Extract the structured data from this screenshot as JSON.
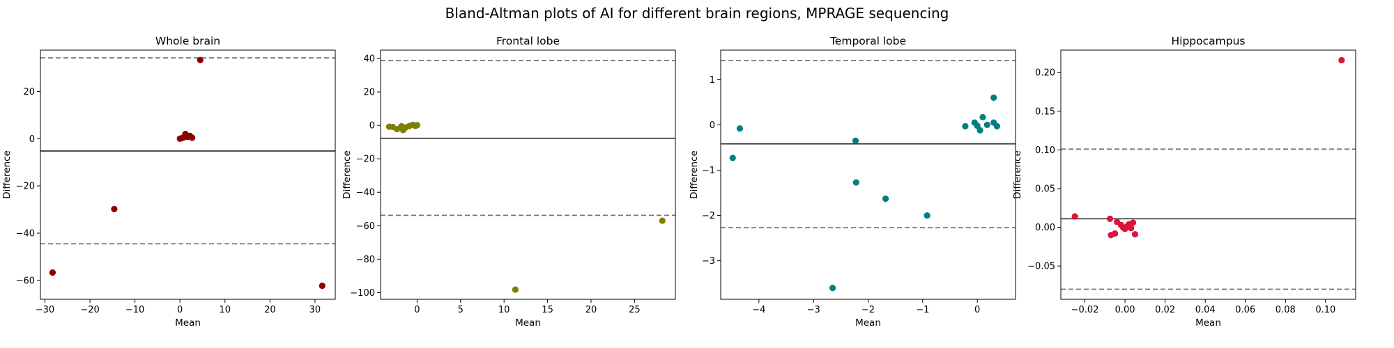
{
  "figure": {
    "title": "Bland-Altman plots of AI for different brain regions, MPRAGE sequencing"
  },
  "chart_data": [
    {
      "type": "scatter",
      "title": "Whole brain",
      "xlabel": "Mean",
      "ylabel": "Difference",
      "color": "#8b0000",
      "xlim": [
        -31,
        34.5
      ],
      "ylim": [
        -68,
        37.5
      ],
      "xticks": [
        -30,
        -20,
        -10,
        0,
        10,
        20,
        30
      ],
      "yticks": [
        -60,
        -40,
        -20,
        0,
        20
      ],
      "mean_diff": -5.2,
      "loa_upper": 34.2,
      "loa_lower": -44.5,
      "points": [
        {
          "x": -28.3,
          "y": -56.7
        },
        {
          "x": -14.6,
          "y": -29.8
        },
        {
          "x": 0.0,
          "y": 0.0
        },
        {
          "x": 0.5,
          "y": 0.3
        },
        {
          "x": 0.8,
          "y": 0.5
        },
        {
          "x": 1.2,
          "y": 2.0
        },
        {
          "x": 1.7,
          "y": 0.8
        },
        {
          "x": 2.2,
          "y": 1.2
        },
        {
          "x": 2.7,
          "y": 0.4
        },
        {
          "x": 4.5,
          "y": 33.3
        },
        {
          "x": 31.6,
          "y": -62.3
        }
      ]
    },
    {
      "type": "scatter",
      "title": "Frontal lobe",
      "xlabel": "Mean",
      "ylabel": "Difference",
      "color": "#808000",
      "xlim": [
        -4.2,
        29.7
      ],
      "ylim": [
        -104,
        45
      ],
      "xticks": [
        0,
        5,
        10,
        15,
        20,
        25
      ],
      "yticks": [
        -100,
        -80,
        -60,
        -40,
        -20,
        0,
        20,
        40
      ],
      "mean_diff": -7.7,
      "loa_upper": 38.8,
      "loa_lower": -53.8,
      "points": [
        {
          "x": -3.2,
          "y": -0.8
        },
        {
          "x": -2.8,
          "y": -1.0
        },
        {
          "x": -2.3,
          "y": -2.3
        },
        {
          "x": -1.8,
          "y": -0.5
        },
        {
          "x": -1.6,
          "y": -2.8
        },
        {
          "x": -1.3,
          "y": -1.2
        },
        {
          "x": -0.9,
          "y": -0.4
        },
        {
          "x": -0.5,
          "y": 0.3
        },
        {
          "x": -0.2,
          "y": -0.3
        },
        {
          "x": 0.0,
          "y": 0.1
        },
        {
          "x": 11.3,
          "y": -98.2
        },
        {
          "x": 28.2,
          "y": -57.0
        }
      ]
    },
    {
      "type": "scatter",
      "title": "Temporal lobe",
      "xlabel": "Mean",
      "ylabel": "Difference",
      "color": "#008080",
      "xlim": [
        -4.7,
        0.7
      ],
      "ylim": [
        -3.85,
        1.65
      ],
      "xticks": [
        -4,
        -3,
        -2,
        -1,
        0
      ],
      "yticks": [
        -3,
        -2,
        -1,
        0,
        1
      ],
      "mean_diff": -0.42,
      "loa_upper": 1.42,
      "loa_lower": -2.27,
      "points": [
        {
          "x": -4.48,
          "y": -0.73
        },
        {
          "x": -4.35,
          "y": -0.08
        },
        {
          "x": -2.65,
          "y": -3.6
        },
        {
          "x": -2.23,
          "y": -0.35
        },
        {
          "x": -2.22,
          "y": -1.27
        },
        {
          "x": -1.68,
          "y": -1.63
        },
        {
          "x": -0.92,
          "y": -2.0
        },
        {
          "x": -0.22,
          "y": -0.03
        },
        {
          "x": -0.05,
          "y": 0.05
        },
        {
          "x": 0.0,
          "y": -0.02
        },
        {
          "x": 0.05,
          "y": -0.12
        },
        {
          "x": 0.1,
          "y": 0.17
        },
        {
          "x": 0.18,
          "y": 0.0
        },
        {
          "x": 0.3,
          "y": 0.6
        },
        {
          "x": 0.3,
          "y": 0.05
        },
        {
          "x": 0.36,
          "y": -0.03
        }
      ]
    },
    {
      "type": "scatter",
      "title": "Hippocampus",
      "xlabel": "Mean",
      "ylabel": "Difference",
      "color": "#dc143c",
      "xlim": [
        -0.032,
        0.115
      ],
      "ylim": [
        -0.093,
        0.229
      ],
      "xticks": [
        -0.02,
        0.0,
        0.02,
        0.04,
        0.06,
        0.08,
        0.1
      ],
      "ytick_labels": [
        "−0.05",
        "0.00",
        "0.05",
        "0.10",
        "0.15",
        "0.20"
      ],
      "xtick_labels": [
        "−0.02",
        "0.00",
        "0.02",
        "0.04",
        "0.06",
        "0.08",
        "0.10"
      ],
      "yticks": [
        -0.05,
        0.0,
        0.05,
        0.1,
        0.15,
        0.2
      ],
      "mean_diff": 0.011,
      "loa_upper": 0.101,
      "loa_lower": -0.08,
      "points": [
        {
          "x": -0.025,
          "y": 0.014
        },
        {
          "x": -0.0075,
          "y": 0.011
        },
        {
          "x": -0.007,
          "y": -0.01
        },
        {
          "x": -0.005,
          "y": -0.008
        },
        {
          "x": -0.004,
          "y": 0.007
        },
        {
          "x": -0.002,
          "y": 0.003
        },
        {
          "x": -0.001,
          "y": 0.0
        },
        {
          "x": 0.0,
          "y": -0.002
        },
        {
          "x": 0.001,
          "y": 0.001
        },
        {
          "x": 0.002,
          "y": 0.004
        },
        {
          "x": 0.003,
          "y": -0.001
        },
        {
          "x": 0.004,
          "y": 0.006
        },
        {
          "x": 0.005,
          "y": -0.009
        },
        {
          "x": 0.108,
          "y": 0.216
        }
      ]
    }
  ]
}
